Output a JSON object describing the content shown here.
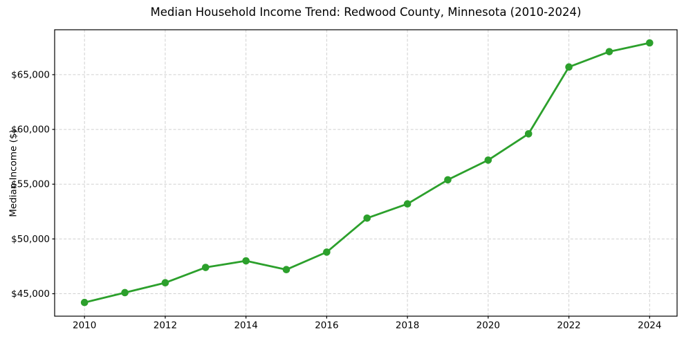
{
  "page": {
    "background": "#ffffff"
  },
  "colors": {
    "line": "#2ca02c",
    "marker": "#2ca02c",
    "grid": "#d0d0d0",
    "axes_frame": "#000000",
    "tick_text": "#000000",
    "background": "#ffffff"
  },
  "chart_data": {
    "type": "line",
    "title": "Median Household Income Trend: Redwood County, Minnesota (2010-2024)",
    "xlabel": "",
    "ylabel": "Median Income ($)",
    "x": [
      2010,
      2011,
      2012,
      2013,
      2014,
      2015,
      2016,
      2017,
      2018,
      2019,
      2020,
      2021,
      2022,
      2023,
      2024
    ],
    "series": [
      {
        "name": "Median household income",
        "color": "#2ca02c",
        "values": [
          44200,
          45100,
          46000,
          47400,
          48000,
          47200,
          48800,
          51900,
          53200,
          55400,
          57200,
          59600,
          65700,
          67100,
          67900
        ]
      }
    ],
    "xticks": [
      2010,
      2012,
      2014,
      2016,
      2018,
      2020,
      2022,
      2024
    ],
    "xtick_labels": [
      "2010",
      "2012",
      "2014",
      "2016",
      "2018",
      "2020",
      "2022",
      "2024"
    ],
    "yticks": [
      45000,
      50000,
      55000,
      60000,
      65000
    ],
    "ytick_labels": [
      "$45,000",
      "$50,000",
      "$55,000",
      "$60,000",
      "$65,000"
    ],
    "xlim": [
      2009.26,
      2024.68
    ],
    "ylim": [
      42950,
      69100
    ],
    "grid": true,
    "grid_axis": "both",
    "grid_style": "dashed",
    "legend_position": "none",
    "marker": "circle"
  }
}
